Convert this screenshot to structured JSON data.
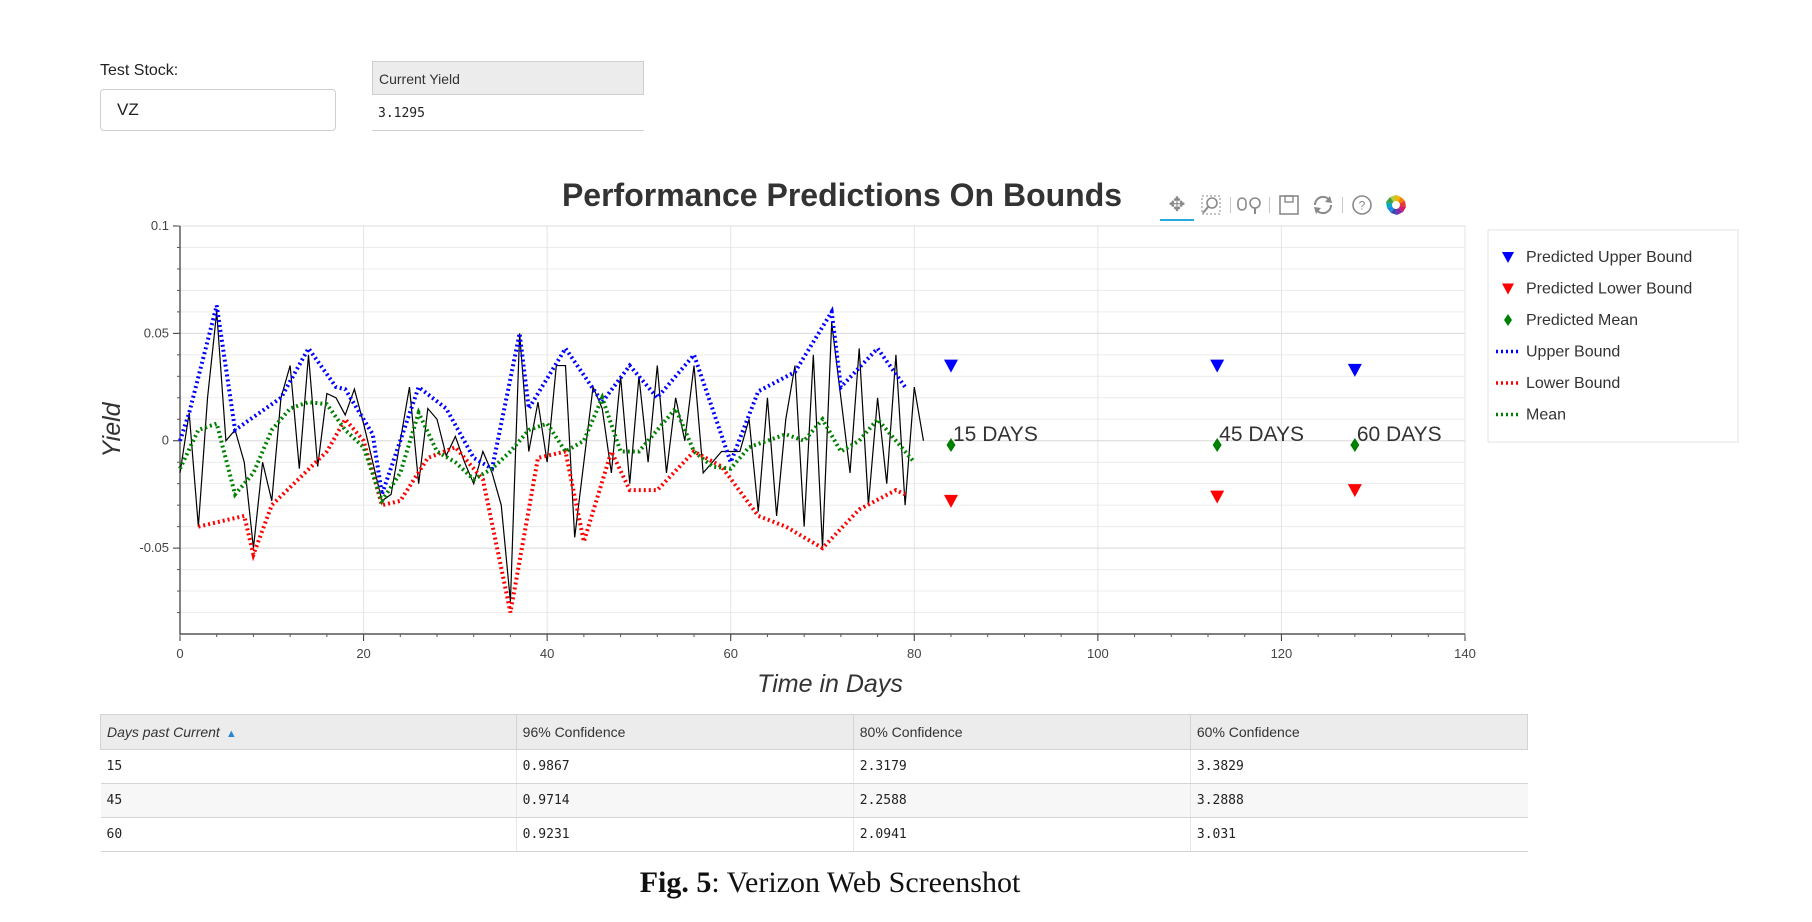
{
  "controls": {
    "stock_label": "Test Stock:",
    "stock_value": "VZ",
    "yield_header": "Current Yield",
    "yield_value": "3.1295"
  },
  "toolbar": {
    "icons": [
      "pan-icon",
      "box-zoom-icon",
      "wheel-zoom-icon",
      "save-icon",
      "reset-icon",
      "help-icon",
      "bokeh-logo-icon"
    ]
  },
  "chart_data": {
    "type": "line",
    "title": "Performance  Predictions On  Bounds",
    "xlabel": "Time in Days",
    "ylabel": "Yield",
    "xlim": [
      0,
      140
    ],
    "ylim": [
      -0.09,
      0.1
    ],
    "xticks": [
      "0",
      "20",
      "40",
      "60",
      "80",
      "100",
      "120",
      "140"
    ],
    "yticks": [
      "0.1",
      "0.05",
      "0",
      "-0.05"
    ],
    "xtick_values": [
      0,
      20,
      40,
      60,
      80,
      100,
      120,
      140
    ],
    "ytick_values": [
      0.1,
      0.05,
      0,
      -0.05
    ],
    "grid": true,
    "legend_position": "right",
    "colors": {
      "upper": "#0000ff",
      "lower": "#ff0000",
      "mean": "#008000",
      "actual": "#000000"
    },
    "actual": {
      "x": [
        0,
        1,
        2,
        3,
        4,
        5,
        6,
        7,
        8,
        9,
        10,
        11,
        12,
        13,
        14,
        15,
        16,
        17,
        18,
        19,
        20,
        21,
        22,
        23,
        24,
        25,
        26,
        27,
        28,
        29,
        30,
        31,
        32,
        33,
        34,
        35,
        36,
        37,
        38,
        39,
        40,
        41,
        42,
        43,
        44,
        45,
        46,
        47,
        48,
        49,
        50,
        51,
        52,
        53,
        54,
        55,
        56,
        57,
        58,
        59,
        60,
        61,
        62,
        63,
        64,
        65,
        66,
        67,
        68,
        69,
        70,
        71,
        72,
        73,
        74,
        75,
        76,
        77,
        78,
        79,
        80,
        81
      ],
      "y": [
        -0.015,
        0.013,
        -0.04,
        0.02,
        0.06,
        0.0,
        0.005,
        -0.01,
        -0.05,
        -0.01,
        -0.028,
        0.02,
        0.035,
        -0.013,
        0.04,
        -0.012,
        0.022,
        0.02,
        0.012,
        0.024,
        0.008,
        -0.01,
        -0.028,
        -0.025,
        0.0,
        0.025,
        -0.02,
        0.015,
        0.01,
        -0.007,
        0.002,
        -0.01,
        -0.02,
        -0.005,
        -0.015,
        -0.03,
        -0.075,
        0.05,
        -0.005,
        0.018,
        -0.01,
        0.035,
        0.035,
        -0.045,
        -0.01,
        0.025,
        0.015,
        -0.015,
        0.03,
        -0.02,
        0.03,
        -0.01,
        0.035,
        -0.015,
        0.02,
        0.0,
        0.035,
        -0.015,
        -0.01,
        -0.005,
        -0.005,
        -0.005,
        0.01,
        -0.033,
        0.02,
        -0.035,
        0.01,
        0.035,
        -0.04,
        0.04,
        -0.05,
        0.055,
        0.02,
        -0.015,
        0.043,
        -0.03,
        0.02,
        -0.02,
        0.04,
        -0.03,
        0.025,
        0.0
      ]
    },
    "series": [
      {
        "name": "Upper Bound",
        "x": [
          0,
          1,
          4,
          6,
          11,
          14,
          17,
          18,
          21,
          22,
          26,
          29,
          32,
          34,
          37,
          38,
          42,
          46,
          49,
          52,
          56,
          60,
          63,
          67,
          71,
          72,
          76,
          79
        ],
        "y": [
          0.0,
          0.013,
          0.063,
          0.005,
          0.02,
          0.043,
          0.025,
          0.024,
          0.003,
          -0.025,
          0.025,
          0.015,
          -0.008,
          -0.013,
          0.05,
          0.015,
          0.043,
          0.018,
          0.035,
          0.02,
          0.04,
          -0.01,
          0.023,
          0.032,
          0.06,
          0.025,
          0.043,
          0.025
        ]
      },
      {
        "name": "Lower Bound",
        "x": [
          2,
          7,
          8,
          10,
          16,
          18,
          20,
          22,
          24,
          27,
          30,
          33,
          36,
          39,
          42,
          44,
          47,
          49,
          52,
          56,
          59,
          63,
          66,
          70,
          74,
          78,
          79
        ],
        "y": [
          -0.04,
          -0.035,
          -0.053,
          -0.03,
          -0.005,
          0.01,
          0.0,
          -0.03,
          -0.028,
          -0.008,
          -0.003,
          -0.018,
          -0.08,
          -0.008,
          -0.005,
          -0.047,
          -0.005,
          -0.023,
          -0.023,
          -0.005,
          -0.012,
          -0.035,
          -0.04,
          -0.05,
          -0.032,
          -0.023,
          -0.025
        ]
      },
      {
        "name": "Mean",
        "x": [
          0,
          2,
          4,
          6,
          8,
          10,
          12,
          14,
          16,
          18,
          20,
          22,
          24,
          26,
          28,
          30,
          32,
          34,
          36,
          38,
          40,
          42,
          44,
          46,
          48,
          50,
          52,
          54,
          56,
          58,
          60,
          62,
          64,
          66,
          68,
          70,
          72,
          74,
          76,
          78,
          80
        ],
        "y": [
          -0.013,
          0.005,
          0.008,
          -0.025,
          -0.015,
          0.005,
          0.015,
          0.018,
          0.017,
          0.005,
          -0.003,
          -0.028,
          -0.015,
          0.013,
          -0.005,
          -0.01,
          -0.018,
          -0.013,
          -0.005,
          0.005,
          0.008,
          -0.005,
          0.0,
          0.02,
          -0.005,
          -0.005,
          0.005,
          0.015,
          -0.005,
          -0.012,
          -0.013,
          -0.003,
          0.0,
          0.003,
          0.0,
          0.01,
          -0.005,
          0.0,
          0.01,
          0.0,
          -0.01
        ]
      }
    ],
    "predictions": {
      "x": [
        84,
        113,
        128
      ],
      "upper": [
        0.035,
        0.035,
        0.033
      ],
      "lower": [
        -0.028,
        -0.026,
        -0.023
      ],
      "mean": [
        -0.002,
        -0.002,
        -0.002
      ],
      "labels": [
        "15 DAYS",
        "45 DAYS",
        "60 DAYS"
      ]
    },
    "legend": [
      {
        "label": "Predicted Upper Bound",
        "kind": "triangle",
        "color": "#0000ff"
      },
      {
        "label": "Predicted Lower Bound",
        "kind": "triangle",
        "color": "#ff0000"
      },
      {
        "label": "Predicted Mean",
        "kind": "diamond",
        "color": "#008000"
      },
      {
        "label": "Upper Bound",
        "kind": "dotted",
        "color": "#0000ff"
      },
      {
        "label": "Lower Bound",
        "kind": "dotted",
        "color": "#ff0000"
      },
      {
        "label": "Mean",
        "kind": "dotted",
        "color": "#008000"
      }
    ]
  },
  "table": {
    "headers": [
      "Days past Current",
      "96% Confidence",
      "80% Confidence",
      "60% Confidence"
    ],
    "sort_indicator": "▲",
    "rows": [
      [
        "15",
        "0.9867",
        "2.3179",
        "3.3829"
      ],
      [
        "45",
        "0.9714",
        "2.2588",
        "3.2888"
      ],
      [
        "60",
        "0.9231",
        "2.0941",
        "3.031"
      ]
    ]
  },
  "caption": {
    "bold": "Fig. 5",
    "text": ":  Verizon Web Screenshot"
  }
}
